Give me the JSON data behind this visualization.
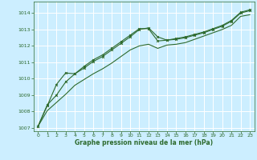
{
  "bg_color": "#cceeff",
  "grid_color": "#ffffff",
  "line_color": "#2d6a2d",
  "xlabel": "Graphe pression niveau de la mer (hPa)",
  "xlim": [
    -0.5,
    23.5
  ],
  "ylim": [
    1006.8,
    1014.7
  ],
  "yticks": [
    1007,
    1008,
    1009,
    1010,
    1011,
    1012,
    1013,
    1014
  ],
  "xticks": [
    0,
    1,
    2,
    3,
    4,
    5,
    6,
    7,
    8,
    9,
    10,
    11,
    12,
    13,
    14,
    15,
    16,
    17,
    18,
    19,
    20,
    21,
    22,
    23
  ],
  "series1_x": [
    0,
    1,
    2,
    3,
    4,
    5,
    6,
    7,
    8,
    9,
    10,
    11,
    12,
    13,
    14,
    15,
    16,
    17,
    18,
    19,
    20,
    21,
    22,
    23
  ],
  "series1_y": [
    1007.1,
    1008.4,
    1009.0,
    1009.8,
    1010.3,
    1010.65,
    1011.05,
    1011.35,
    1011.75,
    1012.15,
    1012.55,
    1013.0,
    1013.1,
    1012.55,
    1012.35,
    1012.4,
    1012.5,
    1012.65,
    1012.8,
    1013.0,
    1013.2,
    1013.5,
    1014.0,
    1014.15
  ],
  "series2_x": [
    0,
    1,
    2,
    3,
    4,
    5,
    6,
    7,
    8,
    9,
    10,
    11,
    12,
    13,
    14,
    15,
    16,
    17,
    18,
    19,
    20,
    21,
    22,
    23
  ],
  "series2_y": [
    1007.1,
    1008.05,
    1008.55,
    1009.05,
    1009.6,
    1009.95,
    1010.3,
    1010.6,
    1010.95,
    1011.35,
    1011.75,
    1012.0,
    1012.1,
    1011.85,
    1012.05,
    1012.1,
    1012.2,
    1012.4,
    1012.6,
    1012.8,
    1013.0,
    1013.25,
    1013.8,
    1013.9
  ],
  "series3_x": [
    0,
    1,
    2,
    3,
    4,
    5,
    6,
    7,
    8,
    9,
    10,
    11,
    12,
    13,
    14,
    15,
    16,
    17,
    18,
    19,
    20,
    21,
    22,
    23
  ],
  "series3_y": [
    1007.1,
    1008.35,
    1009.65,
    1010.35,
    1010.3,
    1010.75,
    1011.15,
    1011.45,
    1011.85,
    1012.25,
    1012.65,
    1013.05,
    1013.05,
    1012.3,
    1012.35,
    1012.45,
    1012.55,
    1012.7,
    1012.85,
    1013.05,
    1013.25,
    1013.55,
    1014.05,
    1014.2
  ]
}
